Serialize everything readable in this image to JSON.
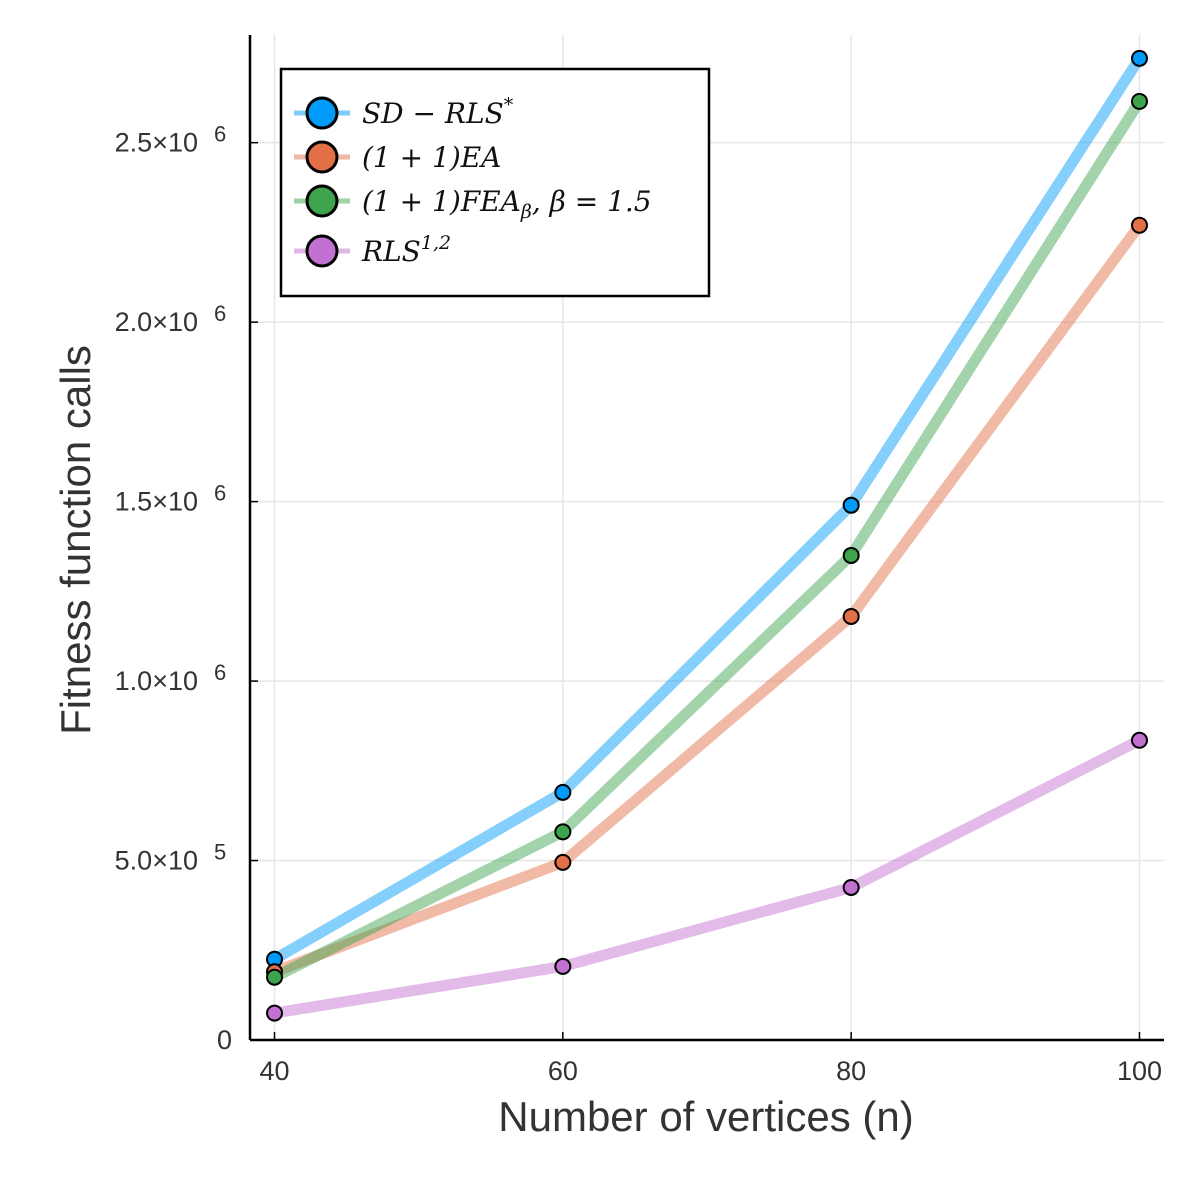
{
  "chart_data": {
    "type": "line",
    "title": "",
    "xlabel": "Number of vertices (n)",
    "ylabel": "Fitness function calls",
    "x": [
      40,
      60,
      80,
      100
    ],
    "xlim": [
      38.3,
      101.7
    ],
    "ylim": [
      0,
      2800000
    ],
    "x_ticks": [
      40,
      60,
      80,
      100
    ],
    "x_tick_labels": [
      "40",
      "60",
      "80",
      "100"
    ],
    "y_ticks": [
      0,
      500000,
      1000000,
      1500000,
      2000000,
      2500000
    ],
    "y_tick_labels": [
      {
        "base": "0",
        "exp": ""
      },
      {
        "base": "5.0×10",
        "exp": "5"
      },
      {
        "base": "1.0×10",
        "exp": "6"
      },
      {
        "base": "1.5×10",
        "exp": "6"
      },
      {
        "base": "2.0×10",
        "exp": "6"
      },
      {
        "base": "2.5×10",
        "exp": "6"
      }
    ],
    "grid": true,
    "legend_position": "top-left",
    "series": [
      {
        "name": "SD − RLS*",
        "color": "#009af9",
        "values": [
          225000,
          690000,
          1490000,
          2735000
        ]
      },
      {
        "name": "(1 + 1)EA",
        "color": "#e26f46",
        "values": [
          190000,
          495000,
          1180000,
          2270000
        ]
      },
      {
        "name": "(1 + 1)FEAβ, β = 1.5",
        "color": "#3da44d",
        "values": [
          175000,
          580000,
          1350000,
          2615000
        ]
      },
      {
        "name": "RLS1,2",
        "color": "#c271d2",
        "values": [
          75000,
          205000,
          425000,
          835000
        ]
      }
    ]
  },
  "legend": {
    "entries": [
      {
        "main": "SD − RLS",
        "sup": "*",
        "sub": ""
      },
      {
        "main": "(1 + 1)EA",
        "sup": "",
        "sub": ""
      },
      {
        "main": "(1 + 1)FEA",
        "sub": "β",
        "rest": ", β = 1.5",
        "sup": ""
      },
      {
        "main": "RLS",
        "sup": "1,2",
        "sub": ""
      }
    ]
  }
}
